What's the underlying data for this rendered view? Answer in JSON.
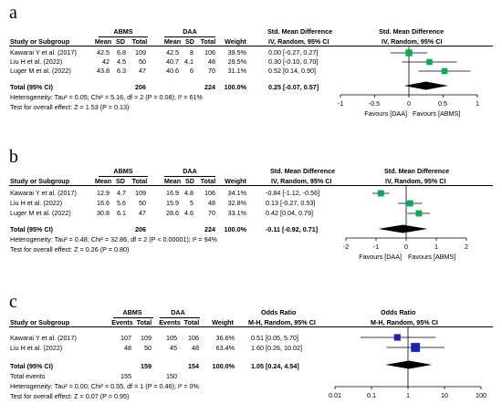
{
  "panels": [
    {
      "label": "a",
      "kind": "mean",
      "group_exp": "ABMS",
      "group_ctl": "DAA",
      "col_headers": [
        "Study or Subgroup",
        "Mean",
        "SD",
        "Total",
        "Mean",
        "SD",
        "Total",
        "Weight"
      ],
      "effect_header_1": "Std. Mean Difference",
      "effect_header_2": "IV, Random, 95% CI",
      "plot_header_1": "Std. Mean Difference",
      "plot_header_2": "IV, Random, 95% CI",
      "studies": [
        {
          "name": "Kawarai Y et al. (2017)",
          "cells": [
            "42.5",
            "6.8",
            "109",
            "42.5",
            "8",
            "106",
            "39.5%"
          ],
          "ci": "0.00 [-0.27, 0.27]"
        },
        {
          "name": "Liu H et al. (2022)",
          "cells": [
            "42",
            "4.5",
            "50",
            "40.7",
            "4.1",
            "48",
            "29.5%"
          ],
          "ci": "0.30 [-0.10, 0.70]"
        },
        {
          "name": "Luger M et al. (2022)",
          "cells": [
            "43.8",
            "6.3",
            "47",
            "40.6",
            "6",
            "70",
            "31.1%"
          ],
          "ci": "0.52 [0.14, 0.90]"
        }
      ],
      "total": {
        "label": "Total (95% CI)",
        "n_exp": "206",
        "n_ctl": "224",
        "weight": "100.0%",
        "ci": "0.25 [-0.07, 0.57]"
      },
      "heterogeneity": "Heterogeneity: Tau² = 0.05; Chi² = 5.16, df = 2 (P = 0.08); I² = 61%",
      "overall": "Test for overall effect: Z = 1.53 (P = 0.13)",
      "axis_ticks": [
        "-1",
        "-0.5",
        "0",
        "0.5",
        "1"
      ],
      "favours_left": "Favours [DAA]",
      "favours_right": "Favours [ABMS]"
    },
    {
      "label": "b",
      "kind": "mean",
      "group_exp": "ABMS",
      "group_ctl": "DAA",
      "col_headers": [
        "Study or Subgroup",
        "Mean",
        "SD",
        "Total",
        "Mean",
        "SD",
        "Total",
        "Weight"
      ],
      "effect_header_1": "Std. Mean Difference",
      "effect_header_2": "IV, Random, 95% CI",
      "plot_header_1": "Std. Mean Difference",
      "plot_header_2": "IV, Random, 95% CI",
      "studies": [
        {
          "name": "Kawarai Y et al. (2017)",
          "cells": [
            "12.9",
            "4.7",
            "109",
            "16.9",
            "4.8",
            "106",
            "34.1%"
          ],
          "ci": "-0.84 [-1.12, -0.56]"
        },
        {
          "name": "Liu H et al. (2022)",
          "cells": [
            "16.6",
            "5.6",
            "50",
            "15.9",
            "5",
            "48",
            "32.8%"
          ],
          "ci": "0.13 [-0.27, 0.53]"
        },
        {
          "name": "Luger M et al. (2022)",
          "cells": [
            "30.8",
            "6.1",
            "47",
            "28.6",
            "4.6",
            "70",
            "33.1%"
          ],
          "ci": "0.42 [0.04, 0.79]"
        }
      ],
      "total": {
        "label": "Total (95% CI)",
        "n_exp": "206",
        "n_ctl": "224",
        "weight": "100.0%",
        "ci": "-0.11 [-0.92, 0.71]"
      },
      "heterogeneity": "Heterogeneity: Tau² = 0.48; Chi² = 32.86, df = 2 (P < 0.00001); I² = 94%",
      "overall": "Test for overall effect: Z = 0.26 (P = 0.80)",
      "axis_ticks": [
        "-2",
        "-1",
        "0",
        "1",
        "2"
      ],
      "favours_left": "Favours [DAA]",
      "favours_right": "Favours [ABMS]"
    },
    {
      "label": "c",
      "kind": "events",
      "group_exp": "ABMS",
      "group_ctl": "DAA",
      "col_headers": [
        "Study or Subgroup",
        "Events",
        "Total",
        "Events",
        "Total",
        "Weight"
      ],
      "effect_header_1": "Odds Ratio",
      "effect_header_2": "M-H, Random, 95% CI",
      "plot_header_1": "Odds Ratio",
      "plot_header_2": "M-H, Random, 95% CI",
      "studies": [
        {
          "name": "Kawarai Y et al. (2017)",
          "cells": [
            "107",
            "109",
            "105",
            "106",
            "36.6%"
          ],
          "ci": "0.51 [0.05, 5.70]"
        },
        {
          "name": "Liu H et al. (2022)",
          "cells": [
            "48",
            "50",
            "45",
            "48",
            "63.4%"
          ],
          "ci": "1.60 [0.26, 10.02]"
        }
      ],
      "total": {
        "label": "Total (95% CI)",
        "n_exp": "159",
        "n_ctl": "154",
        "weight": "100.0%",
        "ci": "1.05 [0.24, 4.54]"
      },
      "total_events": {
        "label": "Total events",
        "exp": "155",
        "ctl": "150"
      },
      "heterogeneity": "Heterogeneity: Tau² = 0.00; Chi² = 0.55, df = 1 (P = 0.46); I² = 0%",
      "overall": "Test for overall effect: Z = 0.07 (P = 0.95)",
      "axis_ticks": [
        "0.01",
        "0.1",
        "1",
        "10",
        "100"
      ],
      "favours_left": "",
      "favours_right": ""
    }
  ],
  "chart_data": [
    {
      "type": "forest",
      "scale": "linear",
      "xlim": [
        -1,
        1
      ],
      "marker_color": "#00b050",
      "studies": [
        {
          "est": 0.0,
          "lo": -0.27,
          "hi": 0.27,
          "weight": 39.5
        },
        {
          "est": 0.3,
          "lo": -0.1,
          "hi": 0.7,
          "weight": 29.5
        },
        {
          "est": 0.52,
          "lo": 0.14,
          "hi": 0.9,
          "weight": 31.1
        }
      ],
      "pooled": {
        "est": 0.25,
        "lo": -0.07,
        "hi": 0.57
      }
    },
    {
      "type": "forest",
      "scale": "linear",
      "xlim": [
        -2,
        2
      ],
      "marker_color": "#00b050",
      "studies": [
        {
          "est": -0.84,
          "lo": -1.12,
          "hi": -0.56,
          "weight": 34.1
        },
        {
          "est": 0.13,
          "lo": -0.27,
          "hi": 0.53,
          "weight": 32.8
        },
        {
          "est": 0.42,
          "lo": 0.04,
          "hi": 0.79,
          "weight": 33.1
        }
      ],
      "pooled": {
        "est": -0.11,
        "lo": -0.92,
        "hi": 0.71
      }
    },
    {
      "type": "forest",
      "scale": "log",
      "xlim": [
        0.01,
        100
      ],
      "marker_color": "#1f1fbf",
      "studies": [
        {
          "est": 0.51,
          "lo": 0.05,
          "hi": 5.7,
          "weight": 36.6
        },
        {
          "est": 1.6,
          "lo": 0.26,
          "hi": 10.02,
          "weight": 63.4
        }
      ],
      "pooled": {
        "est": 1.05,
        "lo": 0.24,
        "hi": 4.54
      }
    }
  ]
}
